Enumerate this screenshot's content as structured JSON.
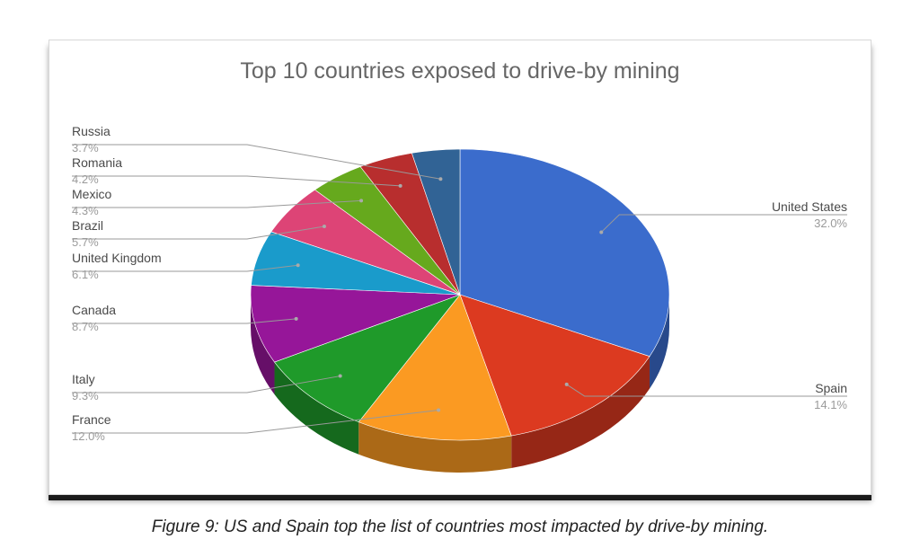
{
  "chart_data": {
    "type": "pie",
    "title": "Top 10 countries exposed to drive-by mining",
    "slices": [
      {
        "label": "United States",
        "value": 32.0,
        "display": "32.0%",
        "color": "#3b6ccc"
      },
      {
        "label": "Spain",
        "value": 14.1,
        "display": "14.1%",
        "color": "#dc3a20"
      },
      {
        "label": "France",
        "value": 12.0,
        "display": "12.0%",
        "color": "#fb9a22"
      },
      {
        "label": "Italy",
        "value": 9.3,
        "display": "9.3%",
        "color": "#1f9a2a"
      },
      {
        "label": "Canada",
        "value": 8.7,
        "display": "8.7%",
        "color": "#961699"
      },
      {
        "label": "United Kingdom",
        "value": 6.1,
        "display": "6.1%",
        "color": "#1a9bcb"
      },
      {
        "label": "Brazil",
        "value": 5.7,
        "display": "5.7%",
        "color": "#dd4476"
      },
      {
        "label": "Mexico",
        "value": 4.3,
        "display": "4.3%",
        "color": "#66a91d"
      },
      {
        "label": "Romania",
        "value": 4.2,
        "display": "4.2%",
        "color": "#b82e2e"
      },
      {
        "label": "Russia",
        "value": 3.7,
        "display": "3.7%",
        "color": "#316395"
      }
    ]
  },
  "caption": "Figure 9: US and Spain top the list of countries most impacted by drive-by mining."
}
